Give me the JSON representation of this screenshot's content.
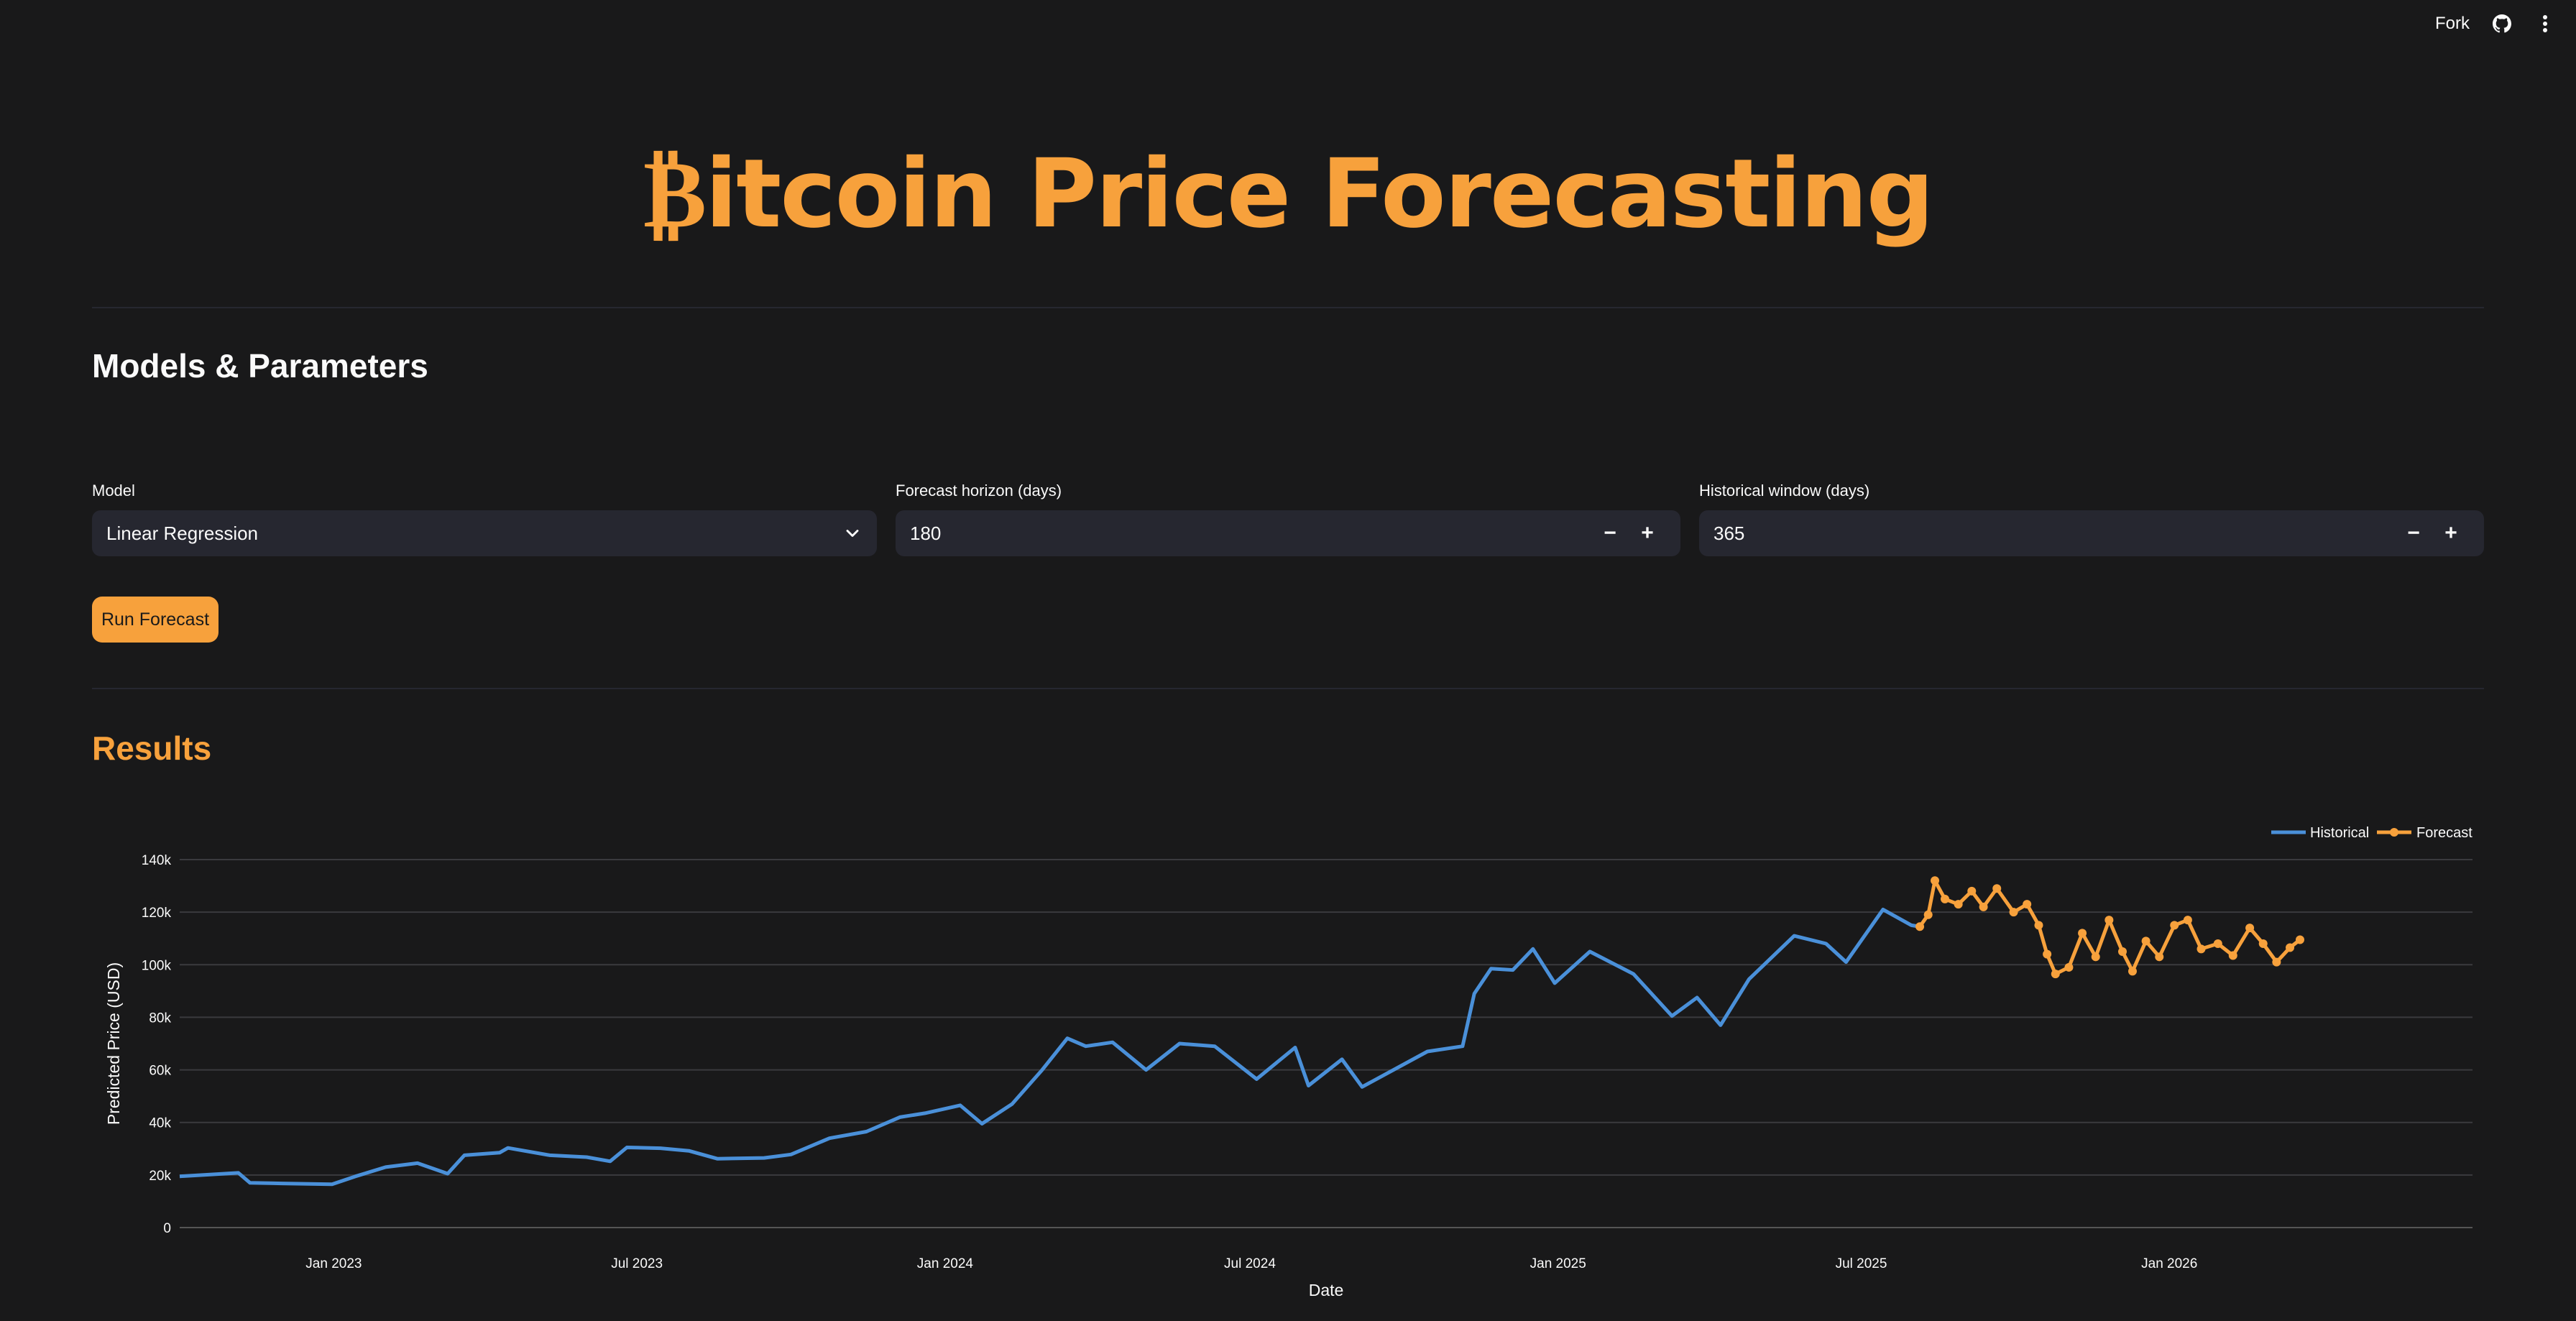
{
  "header": {
    "fork_label": "Fork",
    "icons": [
      "github-icon",
      "more-vert-icon"
    ]
  },
  "title": {
    "symbol": "₿",
    "text": "itcoin Price Forecasting"
  },
  "models_section": {
    "heading": "Models & Parameters"
  },
  "fields": {
    "model": {
      "label": "Model",
      "value": "Linear Regression"
    },
    "horizon": {
      "label": "Forecast horizon (days)",
      "value": "180",
      "minus": "−",
      "plus": "+"
    },
    "window": {
      "label": "Historical window (days)",
      "value": "365",
      "minus": "−",
      "plus": "+"
    }
  },
  "run_button": {
    "label": "Run Forecast"
  },
  "results_section": {
    "heading": "Results"
  },
  "colors": {
    "accent": "#f7a13c",
    "historical": "#4a90d9",
    "forecast": "#f7a13c"
  },
  "chart_data": {
    "type": "line",
    "xlabel": "Date",
    "ylabel": "Predicted Price (USD)",
    "ylim": [
      0,
      140000
    ],
    "xlim": [
      "2022-10-01",
      "2026-07-01"
    ],
    "x_ticks": [
      {
        "date": "2023-01-01",
        "label": "Jan 2023"
      },
      {
        "date": "2023-07-01",
        "label": "Jul 2023"
      },
      {
        "date": "2024-01-01",
        "label": "Jan 2024"
      },
      {
        "date": "2024-07-01",
        "label": "Jul 2024"
      },
      {
        "date": "2025-01-01",
        "label": "Jan 2025"
      },
      {
        "date": "2025-07-01",
        "label": "Jul 2025"
      },
      {
        "date": "2026-01-01",
        "label": "Jan 2026"
      }
    ],
    "y_ticks": [
      {
        "value": 0,
        "label": "0"
      },
      {
        "value": 20000,
        "label": "20k"
      },
      {
        "value": 40000,
        "label": "40k"
      },
      {
        "value": 60000,
        "label": "60k"
      },
      {
        "value": 80000,
        "label": "80k"
      },
      {
        "value": 100000,
        "label": "100k"
      },
      {
        "value": 120000,
        "label": "120k"
      },
      {
        "value": 140000,
        "label": "140k"
      }
    ],
    "grid": true,
    "legend": "top-right",
    "series": [
      {
        "name": "Historical",
        "mode": "lines",
        "points": [
          [
            "2022-10-01",
            19500
          ],
          [
            "2022-10-20",
            20200
          ],
          [
            "2022-11-05",
            20800
          ],
          [
            "2022-11-12",
            17000
          ],
          [
            "2022-12-01",
            16800
          ],
          [
            "2022-12-31",
            16500
          ],
          [
            "2023-01-14",
            19500
          ],
          [
            "2023-02-01",
            23000
          ],
          [
            "2023-02-20",
            24500
          ],
          [
            "2023-03-10",
            20500
          ],
          [
            "2023-03-20",
            27500
          ],
          [
            "2023-04-10",
            28500
          ],
          [
            "2023-04-15",
            30300
          ],
          [
            "2023-05-10",
            27500
          ],
          [
            "2023-06-01",
            26800
          ],
          [
            "2023-06-15",
            25200
          ],
          [
            "2023-06-25",
            30500
          ],
          [
            "2023-07-15",
            30200
          ],
          [
            "2023-08-01",
            29200
          ],
          [
            "2023-08-18",
            26200
          ],
          [
            "2023-09-15",
            26500
          ],
          [
            "2023-10-01",
            27800
          ],
          [
            "2023-10-24",
            34000
          ],
          [
            "2023-11-15",
            36500
          ],
          [
            "2023-12-05",
            42000
          ],
          [
            "2023-12-20",
            43500
          ],
          [
            "2024-01-10",
            46500
          ],
          [
            "2024-01-23",
            39500
          ],
          [
            "2024-02-10",
            47000
          ],
          [
            "2024-02-28",
            60000
          ],
          [
            "2024-03-14",
            72000
          ],
          [
            "2024-03-25",
            69000
          ],
          [
            "2024-04-10",
            70500
          ],
          [
            "2024-04-30",
            60000
          ],
          [
            "2024-05-20",
            70000
          ],
          [
            "2024-06-10",
            69000
          ],
          [
            "2024-07-05",
            56500
          ],
          [
            "2024-07-28",
            68500
          ],
          [
            "2024-08-05",
            54000
          ],
          [
            "2024-08-25",
            64000
          ],
          [
            "2024-09-06",
            53500
          ],
          [
            "2024-10-15",
            67000
          ],
          [
            "2024-11-05",
            69000
          ],
          [
            "2024-11-12",
            89000
          ],
          [
            "2024-11-22",
            98500
          ],
          [
            "2024-12-05",
            98000
          ],
          [
            "2024-12-17",
            106000
          ],
          [
            "2024-12-30",
            93000
          ],
          [
            "2025-01-20",
            105000
          ],
          [
            "2025-02-15",
            96500
          ],
          [
            "2025-03-10",
            80500
          ],
          [
            "2025-03-25",
            87500
          ],
          [
            "2025-04-08",
            77000
          ],
          [
            "2025-04-25",
            94500
          ],
          [
            "2025-05-22",
            111000
          ],
          [
            "2025-06-10",
            108000
          ],
          [
            "2025-06-22",
            101000
          ],
          [
            "2025-07-14",
            121000
          ],
          [
            "2025-07-31",
            115000
          ],
          [
            "2025-08-05",
            114500
          ]
        ]
      },
      {
        "name": "Forecast",
        "mode": "lines+markers",
        "points": [
          [
            "2025-08-05",
            114500
          ],
          [
            "2025-08-10",
            119000
          ],
          [
            "2025-08-14",
            132000
          ],
          [
            "2025-08-20",
            125000
          ],
          [
            "2025-08-28",
            123000
          ],
          [
            "2025-09-05",
            128000
          ],
          [
            "2025-09-12",
            122000
          ],
          [
            "2025-09-20",
            129000
          ],
          [
            "2025-09-30",
            120000
          ],
          [
            "2025-10-08",
            123000
          ],
          [
            "2025-10-15",
            115000
          ],
          [
            "2025-10-20",
            104000
          ],
          [
            "2025-10-25",
            96500
          ],
          [
            "2025-11-02",
            99000
          ],
          [
            "2025-11-10",
            112000
          ],
          [
            "2025-11-18",
            103000
          ],
          [
            "2025-11-26",
            117000
          ],
          [
            "2025-12-04",
            105000
          ],
          [
            "2025-12-10",
            97500
          ],
          [
            "2025-12-18",
            109000
          ],
          [
            "2025-12-26",
            103000
          ],
          [
            "2026-01-04",
            115000
          ],
          [
            "2026-01-12",
            117000
          ],
          [
            "2026-01-20",
            106000
          ],
          [
            "2026-01-30",
            108000
          ],
          [
            "2026-02-08",
            103500
          ],
          [
            "2026-02-18",
            114000
          ],
          [
            "2026-02-26",
            108000
          ],
          [
            "2026-03-06",
            101000
          ],
          [
            "2026-03-14",
            106500
          ],
          [
            "2026-03-20",
            109500
          ]
        ]
      }
    ]
  }
}
